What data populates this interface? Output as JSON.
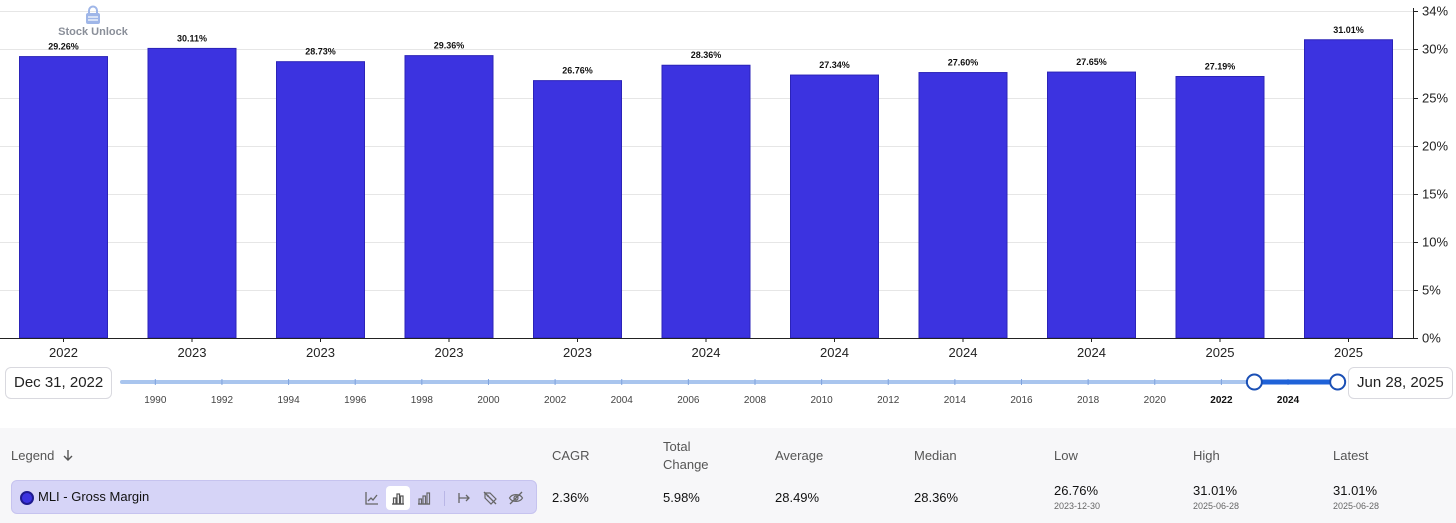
{
  "watermark": "Stock Unlock",
  "chart_data": {
    "type": "bar",
    "categories": [
      "2022",
      "2023",
      "2023",
      "2023",
      "2023",
      "2024",
      "2024",
      "2024",
      "2024",
      "2025",
      "2025"
    ],
    "values": [
      29.26,
      30.11,
      28.73,
      29.36,
      26.76,
      28.36,
      27.34,
      27.6,
      27.65,
      27.19,
      31.01
    ],
    "data_labels": [
      "29.26%",
      "30.11%",
      "28.73%",
      "29.36%",
      "26.76%",
      "28.36%",
      "27.34%",
      "27.60%",
      "27.65%",
      "27.19%",
      "31.01%"
    ],
    "ylim": [
      0,
      34
    ],
    "yticks": [
      0,
      5,
      10,
      15,
      20,
      25,
      30,
      34
    ],
    "ytick_labels": [
      "0%",
      "5%",
      "10%",
      "15%",
      "20%",
      "25%",
      "30%",
      "34%"
    ],
    "y_axis_side": "right",
    "bar_color": "#3c33e0",
    "series_name": "MLI - Gross Margin"
  },
  "range": {
    "start_label": "Dec 31, 2022",
    "end_label": "Jun 28, 2025",
    "years": [
      "1990",
      "1992",
      "1994",
      "1996",
      "1998",
      "2000",
      "2002",
      "2004",
      "2006",
      "2008",
      "2010",
      "2012",
      "2014",
      "2016",
      "2018",
      "2020",
      "2022",
      "2024"
    ],
    "year_min": 1989,
    "year_max": 2025.5,
    "selected_start": 2022.99,
    "selected_end": 2025.49,
    "highlight_years": [
      "2022",
      "2024"
    ]
  },
  "table": {
    "legend_header": "Legend",
    "headers": {
      "cagr": "CAGR",
      "total_change_1": "Total",
      "total_change_2": "Change",
      "average": "Average",
      "median": "Median",
      "low": "Low",
      "high": "High",
      "latest": "Latest"
    },
    "row": {
      "name": "MLI - Gross Margin",
      "cagr": "2.36%",
      "total_change": "5.98%",
      "average": "28.49%",
      "median": "28.36%",
      "low": "26.76%",
      "low_date": "2023-12-30",
      "high": "31.01%",
      "high_date": "2025-06-28",
      "latest": "31.01%",
      "latest_date": "2025-06-28"
    }
  },
  "icons": [
    "line-chart-icon",
    "bar-chart-icon",
    "grouped-bar-chart-icon",
    "range-icon",
    "tag-off-icon",
    "eye-off-icon",
    "sort-down-icon",
    "lock-icon"
  ]
}
